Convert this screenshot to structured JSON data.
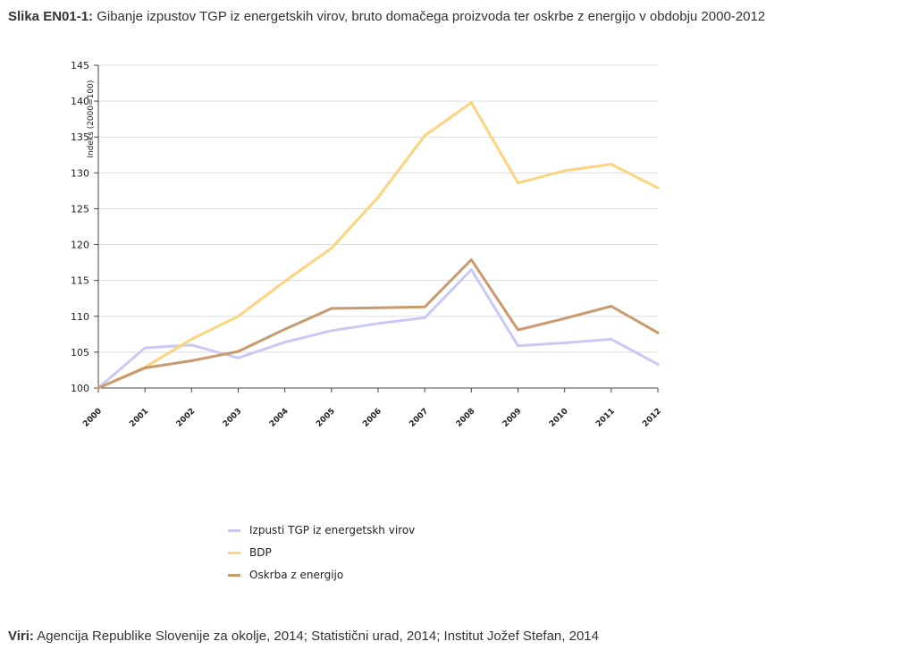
{
  "caption": {
    "label": "Slika EN01-1:",
    "text": " Gibanje izpustov TGP iz energetskih virov, bruto domačega proizvoda ter oskrbe z energijo v obdobju 2000-2012"
  },
  "sources": {
    "label": "Viri:",
    "text": " Agencija Republike Slovenije za okolje, 2014; Statistični urad, 2014; Institut Jožef Stefan, 2014"
  },
  "chart_data": {
    "type": "line",
    "title": "",
    "xlabel": "",
    "ylabel": "Indeks (2000=100)",
    "ylim": [
      100,
      145
    ],
    "yticks": [
      100,
      105,
      110,
      115,
      120,
      125,
      130,
      135,
      140,
      145
    ],
    "grid": true,
    "legend_position": "bottom",
    "categories": [
      "2000",
      "2001",
      "2002",
      "2003",
      "2004",
      "2005",
      "2006",
      "2007",
      "2008",
      "2009",
      "2010",
      "2011",
      "2012"
    ],
    "series": [
      {
        "name": "Izpusti TGP iz energetskh virov",
        "color": "#c9c9f5",
        "values": [
          100,
          105.6,
          106.0,
          104.2,
          106.4,
          108.0,
          109.0,
          109.8,
          116.5,
          105.9,
          106.3,
          106.8,
          103.3
        ]
      },
      {
        "name": "BDP",
        "color": "#fdd37e",
        "values": [
          100,
          102.9,
          106.8,
          110.0,
          114.9,
          119.5,
          126.6,
          135.2,
          139.8,
          128.6,
          130.3,
          131.2,
          127.9
        ]
      },
      {
        "name": "Oskrba z energijo",
        "color": "#c89a6e",
        "values": [
          100,
          102.8,
          103.8,
          105.1,
          108.2,
          111.1,
          111.2,
          111.3,
          117.9,
          108.1,
          109.7,
          111.4,
          107.7
        ]
      }
    ]
  }
}
